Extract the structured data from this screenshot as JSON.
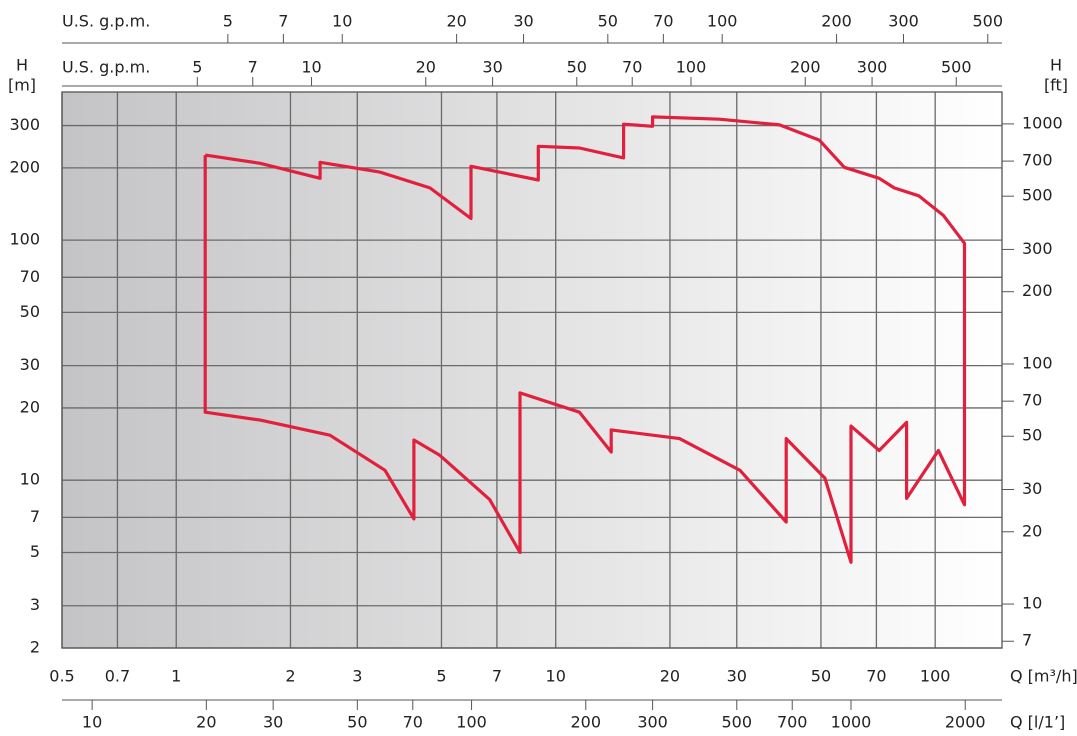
{
  "chart_data": {
    "type": "line",
    "xlabel": "Q [m³/h]",
    "xscale": "log",
    "xlim": [
      0.5,
      150
    ],
    "xticks": [
      0.5,
      0.7,
      1,
      2,
      3,
      5,
      7,
      10,
      20,
      30,
      50,
      70,
      100
    ],
    "x2label": "Q [l/1’]",
    "x2lim": [
      8.33,
      2500
    ],
    "x2ticks": [
      10,
      20,
      30,
      50,
      70,
      100,
      200,
      300,
      500,
      700,
      1000,
      2000
    ],
    "top_axes": [
      {
        "label": "U.S. g.p.m.",
        "lim": [
          1.83,
          545
        ],
        "ticks": [
          5,
          7,
          10,
          20,
          30,
          50,
          70,
          100,
          200,
          300,
          500
        ]
      },
      {
        "label": "U.S. g.p.m.",
        "lim": [
          2.2,
          660
        ],
        "ticks": [
          5,
          7,
          10,
          20,
          30,
          50,
          70,
          100,
          200,
          300,
          500
        ]
      }
    ],
    "ylabel": "H",
    "yunit": "[m]",
    "yscale": "log",
    "ylim": [
      2,
      414
    ],
    "yticks": [
      2,
      3,
      5,
      7,
      10,
      20,
      30,
      50,
      70,
      100,
      200,
      300
    ],
    "y2label": "H",
    "y2unit": "[ft]",
    "y2lim": [
      6.56,
      1358
    ],
    "y2ticks": [
      7,
      10,
      20,
      30,
      50,
      70,
      100,
      200,
      300,
      500,
      700,
      1000
    ],
    "grid": true,
    "series": [
      {
        "color": "#e0203c",
        "x": [
          1.192,
          1.664,
          2.394,
          2.394,
          3.44,
          4.66,
          5.98,
          5.98,
          9.0,
          9.0,
          11.55,
          15.1,
          15.1,
          18.0,
          18.0,
          27.0,
          38.9,
          49.5,
          57.6,
          71.2,
          78,
          90.5,
          105,
          119.5,
          119.5,
          102,
          84.1,
          84.1,
          71.2,
          60,
          60,
          51.2,
          40.5,
          40.5,
          30.6,
          21.2,
          14.0,
          14.0,
          11.55,
          8.05,
          8.05,
          6.7,
          4.95,
          4.23,
          4.23,
          3.55,
          2.54,
          1.664,
          1.192,
          1.192
        ],
        "values": [
          226,
          209,
          181,
          211,
          192,
          165,
          123,
          203,
          178,
          246,
          242,
          220,
          304,
          298,
          326,
          319,
          302,
          261,
          201,
          181,
          165,
          153,
          127,
          97,
          7.9,
          13.3,
          8.4,
          17.4,
          13.3,
          16.8,
          4.55,
          10.2,
          14.9,
          6.7,
          11.0,
          14.9,
          16.2,
          13.1,
          19.2,
          23.1,
          5.0,
          8.3,
          12.7,
          14.7,
          6.9,
          11.0,
          15.4,
          17.8,
          19.2,
          226
        ]
      }
    ]
  }
}
